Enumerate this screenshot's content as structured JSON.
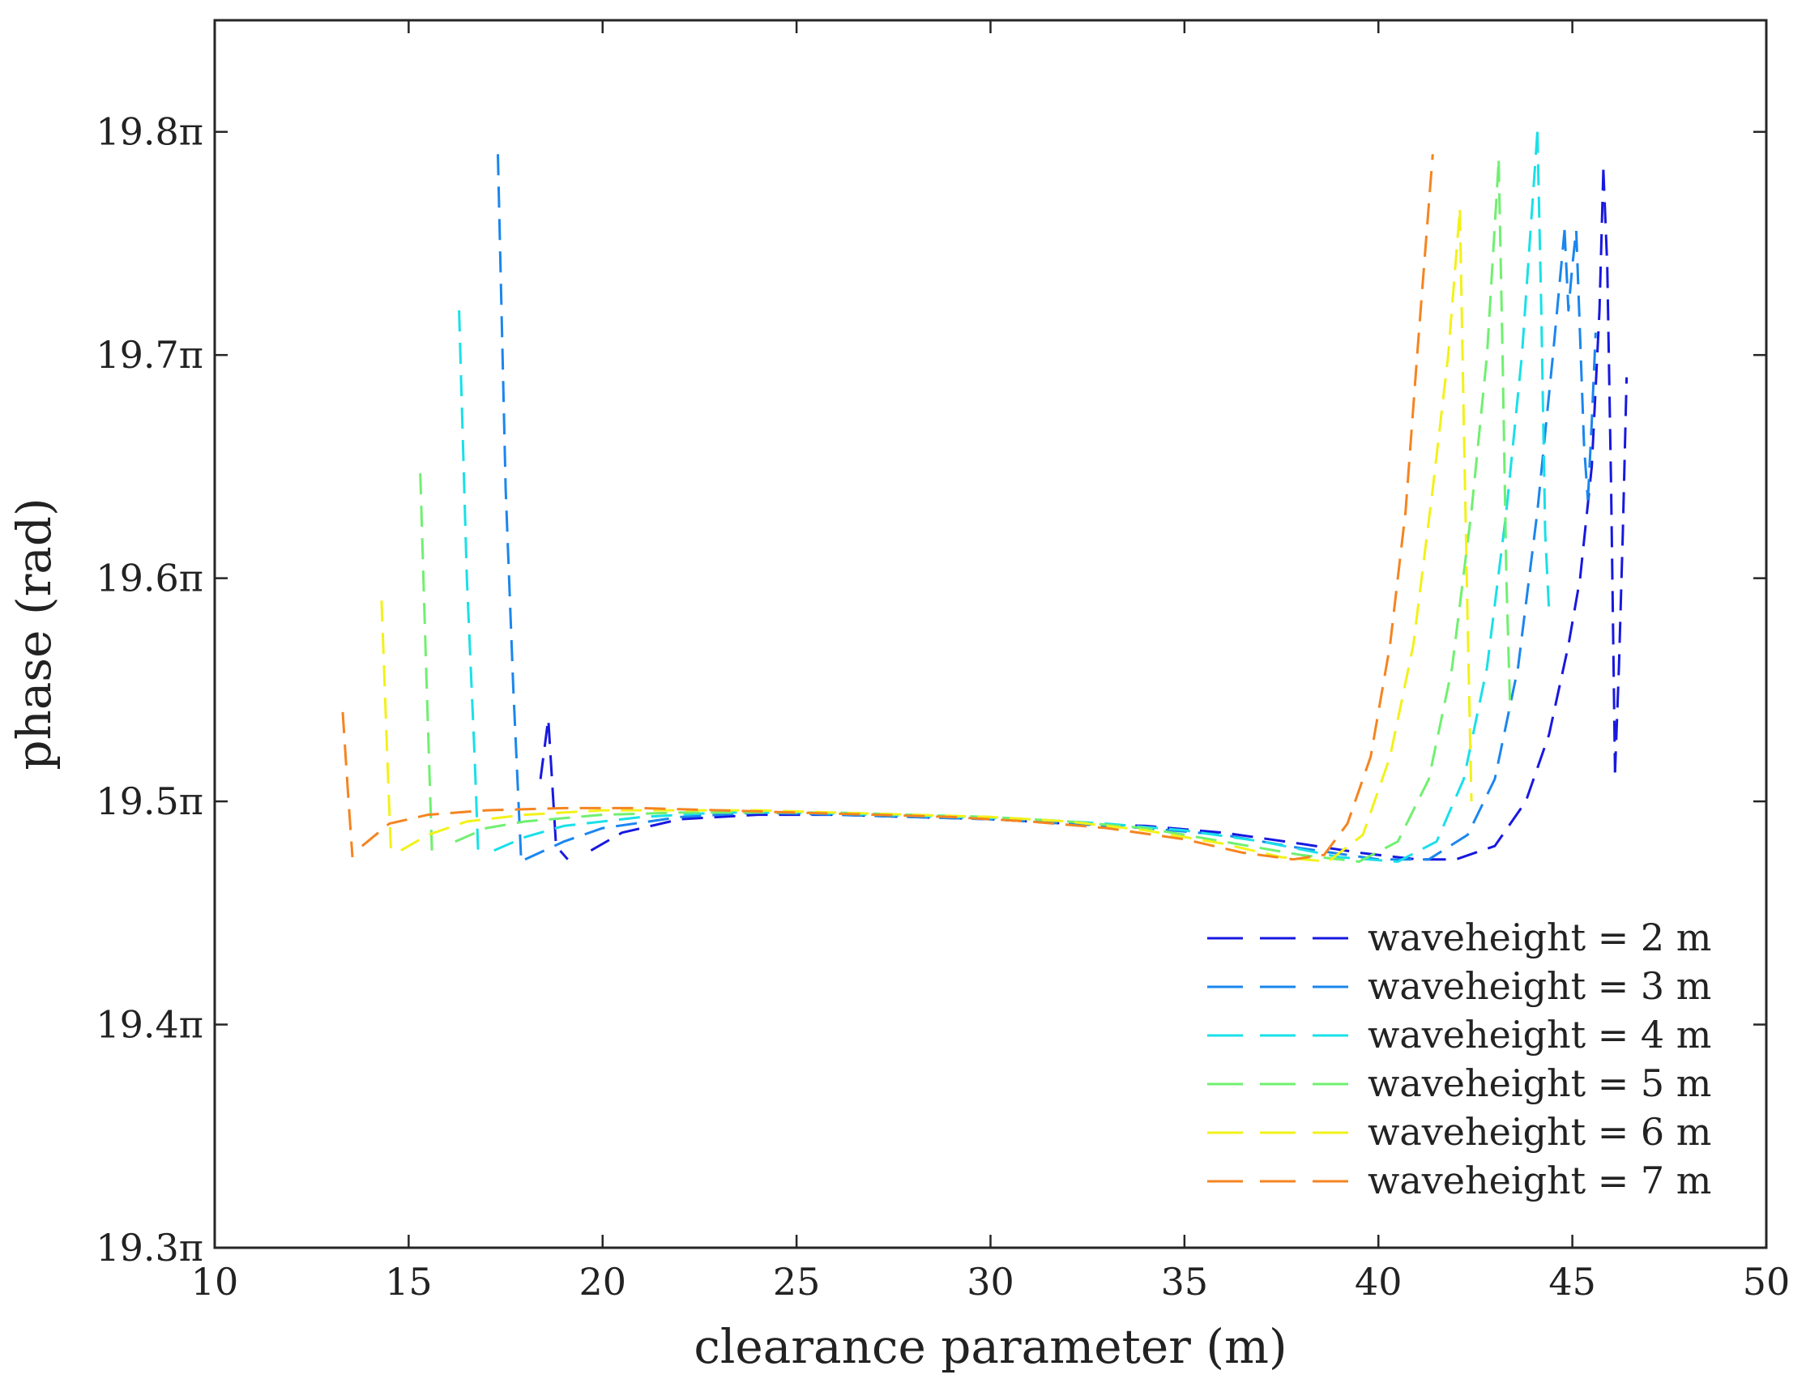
{
  "chart_data": {
    "type": "line",
    "title": "",
    "xlabel": "clearance parameter (m)",
    "ylabel": "phase (rad)",
    "xlim": [
      10,
      50
    ],
    "ylim": [
      19.3,
      19.85
    ],
    "xticks": [
      10,
      15,
      20,
      25,
      30,
      35,
      40,
      45,
      50
    ],
    "xtick_labels": [
      "10",
      "15",
      "20",
      "25",
      "30",
      "35",
      "40",
      "45",
      "50"
    ],
    "yticks": [
      19.3,
      19.4,
      19.5,
      19.6,
      19.7,
      19.8
    ],
    "ytick_labels": [
      "19.3π",
      "19.4π",
      "19.5π",
      "19.6π",
      "19.7π",
      "19.8π"
    ],
    "grid": false,
    "legend_position": "bottom-right",
    "line_style": "dashed",
    "series": [
      {
        "name": "waveheight = 2 m",
        "color": "#1818e0",
        "segments": [
          [
            [
              18.4,
              19.51
            ],
            [
              18.6,
              19.537
            ],
            [
              18.8,
              19.48
            ],
            [
              19.1,
              19.474
            ]
          ],
          [
            [
              19.7,
              19.478
            ],
            [
              20.5,
              19.486
            ],
            [
              22,
              19.492
            ],
            [
              24,
              19.494
            ],
            [
              26,
              19.494
            ],
            [
              28,
              19.493
            ],
            [
              30,
              19.492
            ],
            [
              32,
              19.49
            ],
            [
              34,
              19.489
            ],
            [
              36,
              19.486
            ],
            [
              38,
              19.481
            ],
            [
              39.5,
              19.477
            ],
            [
              41,
              19.474
            ],
            [
              42,
              19.474
            ],
            [
              43,
              19.48
            ],
            [
              43.8,
              19.5
            ],
            [
              44.4,
              19.53
            ],
            [
              44.9,
              19.57
            ],
            [
              45.2,
              19.6
            ],
            [
              45.5,
              19.65
            ],
            [
              45.7,
              19.72
            ],
            [
              45.8,
              19.783
            ]
          ],
          [
            [
              45.8,
              19.783
            ],
            [
              45.9,
              19.74
            ],
            [
              46.0,
              19.64
            ],
            [
              46.1,
              19.513
            ]
          ],
          [
            [
              46.1,
              19.513
            ],
            [
              46.2,
              19.56
            ],
            [
              46.3,
              19.62
            ],
            [
              46.4,
              19.69
            ]
          ]
        ]
      },
      {
        "name": "waveheight = 3 m",
        "color": "#1a86ee",
        "segments": [
          [
            [
              17.3,
              19.79
            ],
            [
              17.5,
              19.64
            ],
            [
              17.7,
              19.55
            ],
            [
              17.9,
              19.474
            ]
          ],
          [
            [
              18.0,
              19.474
            ],
            [
              19,
              19.482
            ],
            [
              20,
              19.488
            ],
            [
              22,
              19.493
            ],
            [
              24,
              19.495
            ],
            [
              26,
              19.494
            ],
            [
              28,
              19.493
            ],
            [
              30,
              19.492
            ],
            [
              32,
              19.49
            ],
            [
              34,
              19.488
            ],
            [
              36,
              19.485
            ],
            [
              38,
              19.479
            ],
            [
              40,
              19.474
            ],
            [
              41.3,
              19.474
            ],
            [
              42.3,
              19.485
            ],
            [
              43,
              19.51
            ],
            [
              43.6,
              19.56
            ],
            [
              44.1,
              19.63
            ],
            [
              44.5,
              19.7
            ],
            [
              44.8,
              19.756
            ]
          ],
          [
            [
              44.8,
              19.756
            ],
            [
              44.9,
              19.72
            ],
            [
              45.0,
              19.74
            ],
            [
              45.1,
              19.756
            ],
            [
              45.3,
              19.66
            ],
            [
              45.4,
              19.635
            ]
          ],
          [
            [
              45.4,
              19.635
            ],
            [
              45.5,
              19.67
            ],
            [
              45.6,
              19.71
            ]
          ]
        ]
      },
      {
        "name": "waveheight = 4 m",
        "color": "#19e0e8",
        "segments": [
          [
            [
              16.3,
              19.72
            ],
            [
              16.5,
              19.6
            ],
            [
              16.7,
              19.52
            ],
            [
              16.8,
              19.474
            ]
          ],
          [
            [
              17.2,
              19.478
            ],
            [
              18,
              19.484
            ],
            [
              19,
              19.489
            ],
            [
              21,
              19.493
            ],
            [
              23,
              19.495
            ],
            [
              25,
              19.495
            ],
            [
              27,
              19.494
            ],
            [
              29,
              19.493
            ],
            [
              31,
              19.492
            ],
            [
              33,
              19.49
            ],
            [
              35,
              19.487
            ],
            [
              37,
              19.482
            ],
            [
              39,
              19.475
            ],
            [
              40.5,
              19.473
            ],
            [
              41.5,
              19.482
            ],
            [
              42.2,
              19.51
            ],
            [
              42.8,
              19.56
            ],
            [
              43.3,
              19.63
            ],
            [
              43.7,
              19.7
            ],
            [
              44.1,
              19.8
            ]
          ],
          [
            [
              44.1,
              19.8
            ],
            [
              44.2,
              19.72
            ],
            [
              44.3,
              19.62
            ],
            [
              44.4,
              19.585
            ]
          ]
        ]
      },
      {
        "name": "waveheight = 5 m",
        "color": "#70f070",
        "segments": [
          [
            [
              15.3,
              19.647
            ],
            [
              15.45,
              19.56
            ],
            [
              15.6,
              19.478
            ]
          ],
          [
            [
              16.2,
              19.482
            ],
            [
              17,
              19.488
            ],
            [
              18,
              19.491
            ],
            [
              20,
              19.494
            ],
            [
              22,
              19.495
            ],
            [
              24,
              19.495
            ],
            [
              26,
              19.495
            ],
            [
              28,
              19.494
            ],
            [
              30,
              19.493
            ],
            [
              32,
              19.491
            ],
            [
              34,
              19.488
            ],
            [
              36,
              19.482
            ],
            [
              38,
              19.476
            ],
            [
              39.5,
              19.473
            ],
            [
              40.5,
              19.482
            ],
            [
              41.3,
              19.51
            ],
            [
              41.9,
              19.56
            ],
            [
              42.4,
              19.63
            ],
            [
              42.8,
              19.7
            ],
            [
              43.1,
              19.787
            ]
          ],
          [
            [
              43.1,
              19.787
            ],
            [
              43.2,
              19.7
            ],
            [
              43.3,
              19.6
            ],
            [
              43.4,
              19.54
            ]
          ]
        ]
      },
      {
        "name": "waveheight = 6 m",
        "color": "#f2f218",
        "segments": [
          [
            [
              14.3,
              19.59
            ],
            [
              14.45,
              19.52
            ],
            [
              14.55,
              19.475
            ]
          ],
          [
            [
              14.8,
              19.478
            ],
            [
              15.5,
              19.485
            ],
            [
              16.5,
              19.491
            ],
            [
              18,
              19.494
            ],
            [
              20,
              19.496
            ],
            [
              22,
              19.496
            ],
            [
              24,
              19.496
            ],
            [
              26,
              19.495
            ],
            [
              28,
              19.494
            ],
            [
              30,
              19.493
            ],
            [
              32,
              19.491
            ],
            [
              34,
              19.487
            ],
            [
              36,
              19.481
            ],
            [
              37.5,
              19.475
            ],
            [
              38.7,
              19.473
            ],
            [
              39.6,
              19.485
            ],
            [
              40.3,
              19.52
            ],
            [
              40.9,
              19.57
            ],
            [
              41.4,
              19.64
            ],
            [
              41.8,
              19.7
            ],
            [
              42.1,
              19.765
            ]
          ],
          [
            [
              42.1,
              19.765
            ],
            [
              42.2,
              19.67
            ],
            [
              42.3,
              19.58
            ],
            [
              42.4,
              19.5
            ]
          ]
        ]
      },
      {
        "name": "waveheight = 7 m",
        "color": "#f58420",
        "segments": [
          [
            [
              13.3,
              19.54
            ],
            [
              13.45,
              19.5
            ],
            [
              13.55,
              19.475
            ]
          ],
          [
            [
              13.8,
              19.48
            ],
            [
              14.5,
              19.49
            ],
            [
              15.5,
              19.494
            ],
            [
              17,
              19.496
            ],
            [
              19,
              19.497
            ],
            [
              21,
              19.497
            ],
            [
              23,
              19.496
            ],
            [
              25,
              19.495
            ],
            [
              27,
              19.494
            ],
            [
              29,
              19.493
            ],
            [
              31,
              19.491
            ],
            [
              33,
              19.488
            ],
            [
              35,
              19.483
            ],
            [
              36.5,
              19.477
            ],
            [
              37.8,
              19.474
            ],
            [
              38.6,
              19.476
            ],
            [
              39.2,
              19.49
            ],
            [
              39.8,
              19.52
            ],
            [
              40.3,
              19.57
            ],
            [
              40.7,
              19.63
            ],
            [
              41.0,
              19.7
            ],
            [
              41.4,
              19.79
            ]
          ]
        ]
      }
    ]
  }
}
